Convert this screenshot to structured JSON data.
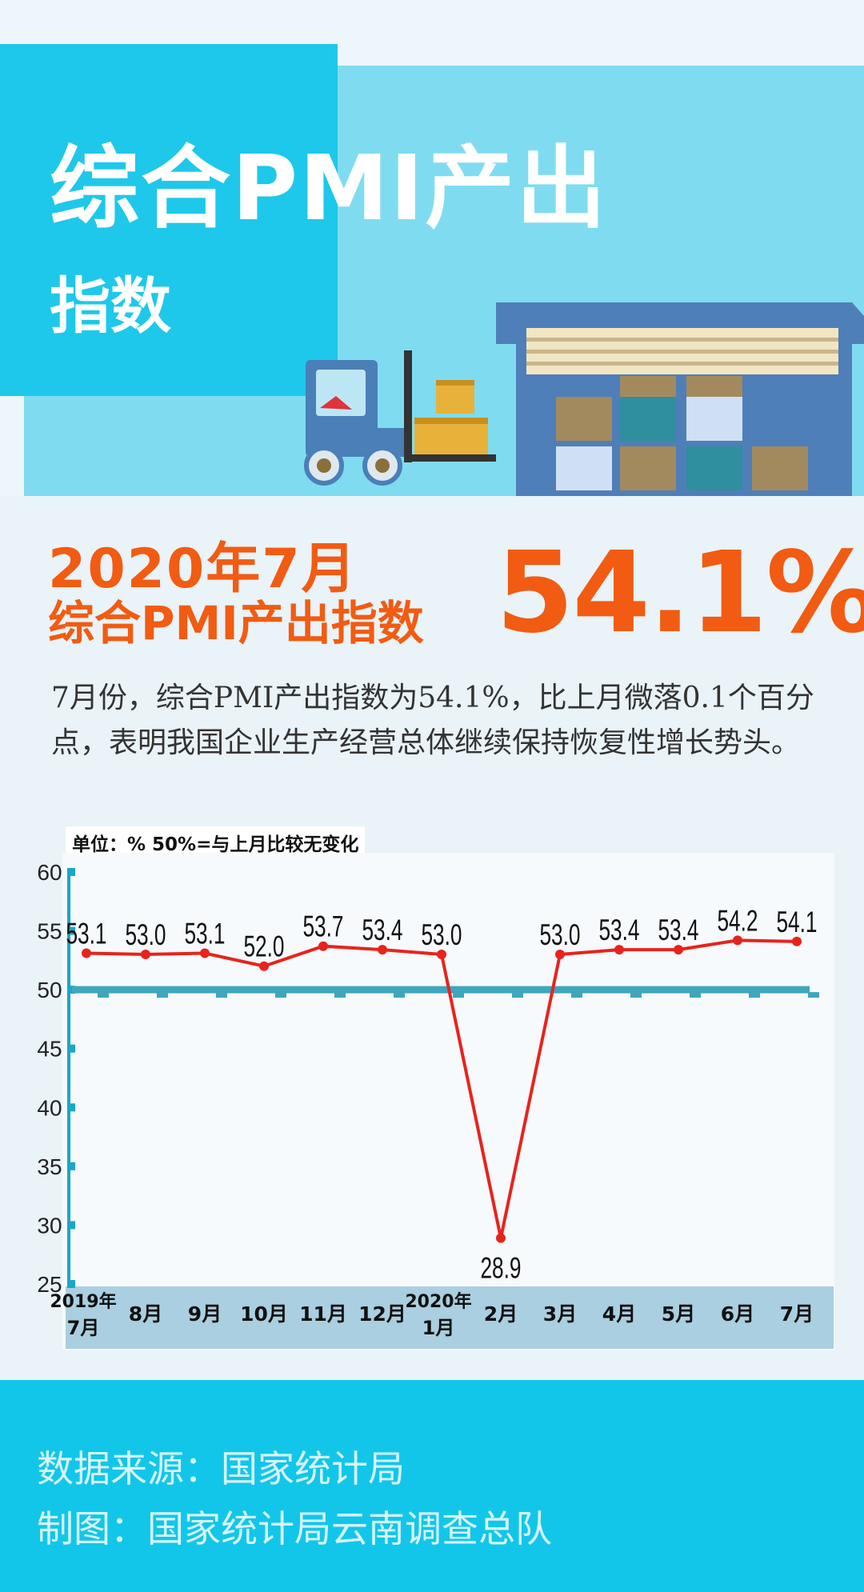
{
  "header": {
    "title_line1": "综合PMI产出",
    "title_line2": "指数"
  },
  "headline": {
    "line1": "2020年7月",
    "line2": "综合PMI产出指数",
    "big_value": "54.1%"
  },
  "description": "7月份，综合PMI产出指数为54.1%，比上月微落0.1个百分点，表明我国企业生产经营总体继续保持恢复性增长势头。",
  "illustration": {
    "icons": [
      "forklift-icon",
      "warehouse-icon",
      "cargo-boxes-icon"
    ]
  },
  "footer": {
    "source": "数据来源：国家统计局",
    "author": "制图：国家统计局云南调查总队"
  },
  "colors": {
    "orange": "#f25b12",
    "cyan": "#1ec8ea",
    "line_red": "#e8231c",
    "ref_teal": "#3fa6bd"
  },
  "chart_data": {
    "type": "line",
    "unit_note": "单位：% 50%=与上月比较无变化",
    "categories": [
      [
        "2019年",
        "7月"
      ],
      [
        "8月"
      ],
      [
        "9月"
      ],
      [
        "10月"
      ],
      [
        "11月"
      ],
      [
        "12月"
      ],
      [
        "2020年",
        "1月"
      ],
      [
        "2月"
      ],
      [
        "3月"
      ],
      [
        "4月"
      ],
      [
        "5月"
      ],
      [
        "6月"
      ],
      [
        "7月"
      ]
    ],
    "series": [
      {
        "name": "综合PMI产出指数",
        "values": [
          53.1,
          53.0,
          53.1,
          52.0,
          53.7,
          53.4,
          53.0,
          28.9,
          53.0,
          53.4,
          53.4,
          54.2,
          54.1
        ],
        "labels": [
          "53.1",
          "53.0",
          "53.1",
          "52.0",
          "53.7",
          "53.4",
          "53.0",
          "28.9",
          "53.0",
          "53.4",
          "53.4",
          "54.2",
          "54.1"
        ]
      }
    ],
    "reference_line": 50,
    "ylim": [
      25,
      60
    ],
    "yticks": [
      25,
      30,
      35,
      40,
      45,
      50,
      55,
      60
    ],
    "xlabel": "",
    "ylabel": ""
  }
}
